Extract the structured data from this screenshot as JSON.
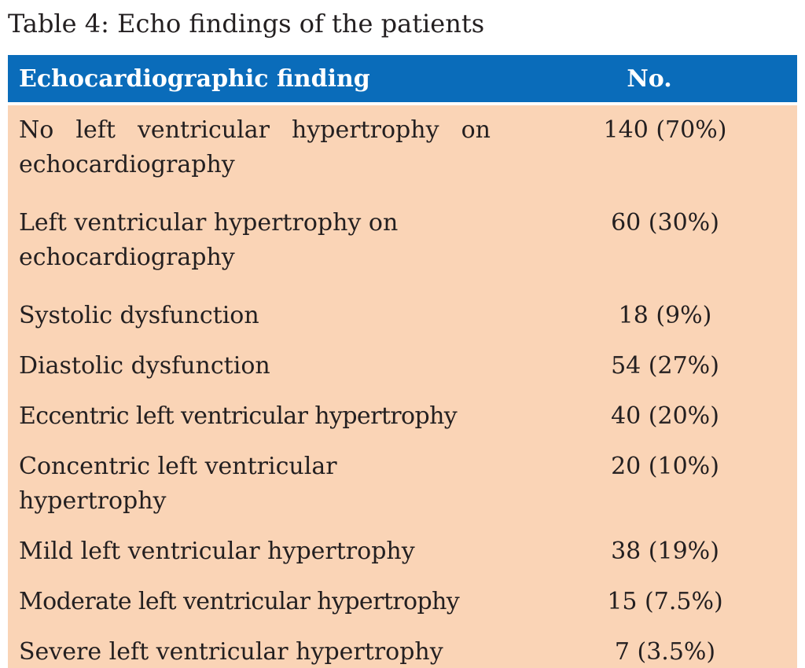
{
  "caption": "Table 4: Echo findings of the patients",
  "colors": {
    "header_bg": "#0a6cba",
    "body_bg": "#fad4b6"
  },
  "table": {
    "headers": [
      "Echocardiographic finding",
      "No."
    ],
    "rows": [
      {
        "finding": "No left ventricular hypertrophy on echocardiography",
        "no": "140 (70%)"
      },
      {
        "finding": "Left ventricular hypertrophy on echocardiography",
        "no": "60 (30%)"
      },
      {
        "finding": "Systolic dysfunction",
        "no": "18 (9%)"
      },
      {
        "finding": "Diastolic dysfunction",
        "no": "54 (27%)"
      },
      {
        "finding": "Eccentric left ventricular hypertrophy",
        "no": "40 (20%)"
      },
      {
        "finding": "Concentric left ventricular hypertrophy",
        "no": "20 (10%)"
      },
      {
        "finding": "Mild left ventricular hypertrophy",
        "no": "38 (19%)"
      },
      {
        "finding": "Moderate left ventricular hypertrophy",
        "no": "15 (7.5%)"
      },
      {
        "finding": "Severe left ventricular hypertrophy",
        "no": "7 (3.5%)"
      }
    ]
  }
}
